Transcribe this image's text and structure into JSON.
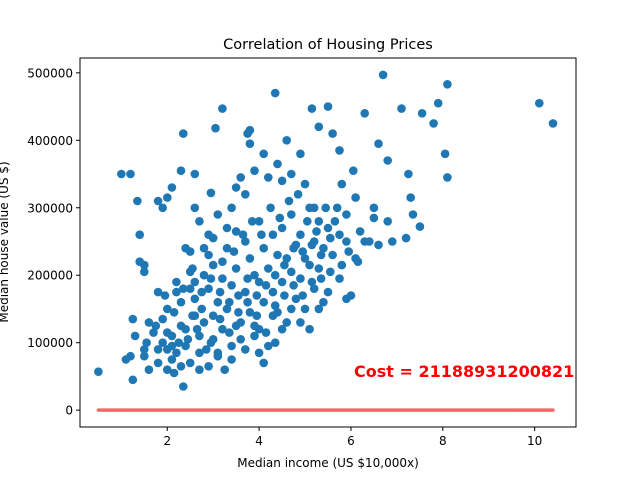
{
  "chart_data": {
    "type": "scatter",
    "title": "Correlation of Housing Prices",
    "xlabel": "Median income (US $10,000x)",
    "ylabel": "Median house value (US $)",
    "xlim": [
      0.1,
      10.9
    ],
    "ylim": [
      -25000,
      522000
    ],
    "xticks": [
      2,
      4,
      6,
      8,
      10
    ],
    "yticks": [
      0,
      100000,
      200000,
      300000,
      400000,
      500000
    ],
    "xtick_labels": [
      "2",
      "4",
      "6",
      "8",
      "10"
    ],
    "ytick_labels": [
      "0",
      "100000",
      "200000",
      "300000",
      "400000",
      "500000"
    ],
    "grid": false,
    "annotation": {
      "text": "Cost = 21188931200821",
      "x": 6.0,
      "y": 57000,
      "color": "#ff0000"
    },
    "fit_line": {
      "x": [
        0.5,
        10.4
      ],
      "y": [
        0,
        0
      ],
      "color": "#ff6666"
    },
    "point_color": "#1f77b4",
    "points": [
      [
        0.5,
        57000
      ],
      [
        1.0,
        350000
      ],
      [
        1.1,
        75000
      ],
      [
        1.2,
        350000
      ],
      [
        1.2,
        80000
      ],
      [
        1.25,
        135000
      ],
      [
        1.35,
        310000
      ],
      [
        1.4,
        260000
      ],
      [
        1.4,
        220000
      ],
      [
        1.5,
        215000
      ],
      [
        1.5,
        205000
      ],
      [
        1.3,
        110000
      ],
      [
        1.5,
        90000
      ],
      [
        1.5,
        80000
      ],
      [
        1.6,
        60000
      ],
      [
        1.8,
        310000
      ],
      [
        1.8,
        70000
      ],
      [
        1.9,
        300000
      ],
      [
        2.0,
        315000
      ],
      [
        2.0,
        90000
      ],
      [
        2.1,
        330000
      ],
      [
        2.3,
        355000
      ],
      [
        2.35,
        410000
      ],
      [
        2.4,
        240000
      ],
      [
        2.5,
        235000
      ],
      [
        2.6,
        300000
      ],
      [
        2.6,
        350000
      ],
      [
        2.7,
        280000
      ],
      [
        2.9,
        260000
      ],
      [
        2.95,
        322000
      ],
      [
        3.0,
        140000
      ],
      [
        3.05,
        418000
      ],
      [
        3.2,
        447000
      ],
      [
        3.1,
        290000
      ],
      [
        3.3,
        270000
      ],
      [
        3.4,
        300000
      ],
      [
        3.5,
        330000
      ],
      [
        3.6,
        345000
      ],
      [
        3.7,
        320000
      ],
      [
        3.75,
        410000
      ],
      [
        3.8,
        415000
      ],
      [
        3.8,
        395000
      ],
      [
        3.9,
        355000
      ],
      [
        4.1,
        380000
      ],
      [
        4.2,
        345000
      ],
      [
        4.35,
        470000
      ],
      [
        4.4,
        365000
      ],
      [
        4.5,
        340000
      ],
      [
        4.6,
        400000
      ],
      [
        4.7,
        350000
      ],
      [
        4.9,
        380000
      ],
      [
        5.0,
        335000
      ],
      [
        5.15,
        447000
      ],
      [
        5.2,
        300000
      ],
      [
        5.3,
        420000
      ],
      [
        5.5,
        450000
      ],
      [
        5.6,
        410000
      ],
      [
        5.75,
        385000
      ],
      [
        5.8,
        335000
      ],
      [
        5.9,
        290000
      ],
      [
        6.05,
        355000
      ],
      [
        6.1,
        315000
      ],
      [
        6.3,
        440000
      ],
      [
        6.5,
        300000
      ],
      [
        6.6,
        395000
      ],
      [
        6.7,
        497000
      ],
      [
        6.8,
        370000
      ],
      [
        6.9,
        250000
      ],
      [
        7.1,
        447000
      ],
      [
        7.25,
        350000
      ],
      [
        7.3,
        315000
      ],
      [
        7.35,
        290000
      ],
      [
        7.5,
        272000
      ],
      [
        7.55,
        440000
      ],
      [
        7.8,
        425000
      ],
      [
        7.9,
        455000
      ],
      [
        8.05,
        380000
      ],
      [
        8.1,
        483000
      ],
      [
        8.1,
        345000
      ],
      [
        10.1,
        455000
      ],
      [
        10.4,
        425000
      ],
      [
        1.25,
        45000
      ],
      [
        1.55,
        100000
      ],
      [
        1.7,
        115000
      ],
      [
        1.8,
        175000
      ],
      [
        1.9,
        135000
      ],
      [
        2.0,
        150000
      ],
      [
        2.1,
        110000
      ],
      [
        2.1,
        95000
      ],
      [
        2.2,
        190000
      ],
      [
        2.2,
        175000
      ],
      [
        2.3,
        160000
      ],
      [
        2.3,
        125000
      ],
      [
        2.35,
        35000
      ],
      [
        2.4,
        95000
      ],
      [
        2.5,
        205000
      ],
      [
        2.5,
        180000
      ],
      [
        2.6,
        165000
      ],
      [
        2.6,
        140000
      ],
      [
        2.7,
        110000
      ],
      [
        2.7,
        60000
      ],
      [
        2.8,
        200000
      ],
      [
        2.8,
        130000
      ],
      [
        2.85,
        90000
      ],
      [
        2.9,
        230000
      ],
      [
        2.9,
        180000
      ],
      [
        3.0,
        215000
      ],
      [
        3.0,
        105000
      ],
      [
        3.1,
        160000
      ],
      [
        3.1,
        80000
      ],
      [
        3.2,
        195000
      ],
      [
        3.2,
        120000
      ],
      [
        3.3,
        240000
      ],
      [
        3.3,
        150000
      ],
      [
        3.4,
        185000
      ],
      [
        3.4,
        95000
      ],
      [
        3.5,
        265000
      ],
      [
        3.5,
        210000
      ],
      [
        3.6,
        130000
      ],
      [
        3.6,
        105000
      ],
      [
        3.7,
        250000
      ],
      [
        3.7,
        175000
      ],
      [
        3.8,
        225000
      ],
      [
        3.8,
        145000
      ],
      [
        3.9,
        200000
      ],
      [
        3.9,
        110000
      ],
      [
        4.0,
        280000
      ],
      [
        4.0,
        190000
      ],
      [
        4.0,
        120000
      ],
      [
        4.1,
        240000
      ],
      [
        4.1,
        160000
      ],
      [
        4.2,
        210000
      ],
      [
        4.2,
        95000
      ],
      [
        4.3,
        260000
      ],
      [
        4.3,
        175000
      ],
      [
        4.35,
        100000
      ],
      [
        4.4,
        230000
      ],
      [
        4.4,
        145000
      ],
      [
        4.5,
        270000
      ],
      [
        4.5,
        190000
      ],
      [
        4.6,
        225000
      ],
      [
        4.6,
        130000
      ],
      [
        4.7,
        290000
      ],
      [
        4.7,
        205000
      ],
      [
        4.8,
        245000
      ],
      [
        4.8,
        165000
      ],
      [
        4.9,
        260000
      ],
      [
        4.9,
        195000
      ],
      [
        5.0,
        225000
      ],
      [
        5.0,
        150000
      ],
      [
        5.1,
        300000
      ],
      [
        5.1,
        215000
      ],
      [
        5.2,
        250000
      ],
      [
        5.2,
        180000
      ],
      [
        5.3,
        280000
      ],
      [
        5.3,
        210000
      ],
      [
        5.4,
        240000
      ],
      [
        5.4,
        160000
      ],
      [
        5.5,
        270000
      ],
      [
        5.6,
        230000
      ],
      [
        5.7,
        300000
      ],
      [
        5.75,
        260000
      ],
      [
        5.8,
        215000
      ],
      [
        5.9,
        250000
      ],
      [
        6.0,
        170000
      ],
      [
        6.1,
        225000
      ],
      [
        6.2,
        265000
      ],
      [
        6.3,
        250000
      ],
      [
        6.5,
        285000
      ],
      [
        6.6,
        245000
      ],
      [
        6.8,
        280000
      ],
      [
        7.2,
        255000
      ],
      [
        2.0,
        60000
      ],
      [
        2.1,
        75000
      ],
      [
        2.2,
        85000
      ],
      [
        2.3,
        65000
      ],
      [
        2.4,
        120000
      ],
      [
        2.5,
        70000
      ],
      [
        2.55,
        140000
      ],
      [
        2.7,
        85000
      ],
      [
        2.9,
        65000
      ],
      [
        3.1,
        85000
      ],
      [
        3.25,
        60000
      ],
      [
        3.4,
        75000
      ],
      [
        3.5,
        125000
      ],
      [
        3.7,
        90000
      ],
      [
        3.9,
        125000
      ],
      [
        4.0,
        85000
      ],
      [
        4.1,
        70000
      ],
      [
        4.3,
        140000
      ],
      [
        4.5,
        120000
      ],
      [
        4.7,
        150000
      ],
      [
        4.9,
        130000
      ],
      [
        5.1,
        120000
      ],
      [
        5.3,
        150000
      ],
      [
        5.5,
        175000
      ],
      [
        5.9,
        165000
      ],
      [
        1.8,
        90000
      ],
      [
        1.9,
        100000
      ],
      [
        2.0,
        115000
      ],
      [
        2.15,
        55000
      ],
      [
        2.25,
        100000
      ],
      [
        2.45,
        105000
      ],
      [
        2.65,
        120000
      ],
      [
        2.75,
        150000
      ],
      [
        2.95,
        100000
      ],
      [
        3.15,
        135000
      ],
      [
        3.35,
        115000
      ],
      [
        3.55,
        145000
      ],
      [
        3.75,
        160000
      ],
      [
        3.95,
        140000
      ],
      [
        4.15,
        115000
      ],
      [
        4.35,
        155000
      ],
      [
        4.55,
        170000
      ],
      [
        4.75,
        185000
      ],
      [
        4.95,
        170000
      ],
      [
        5.15,
        190000
      ],
      [
        5.35,
        195000
      ],
      [
        5.55,
        205000
      ],
      [
        5.75,
        195000
      ],
      [
        5.95,
        235000
      ],
      [
        6.15,
        220000
      ],
      [
        2.6,
        190000
      ],
      [
        2.8,
        240000
      ],
      [
        3.0,
        255000
      ],
      [
        3.2,
        220000
      ],
      [
        3.45,
        235000
      ],
      [
        3.65,
        260000
      ],
      [
        3.85,
        280000
      ],
      [
        4.05,
        260000
      ],
      [
        4.25,
        300000
      ],
      [
        4.45,
        285000
      ],
      [
        4.65,
        310000
      ],
      [
        4.85,
        320000
      ],
      [
        5.05,
        280000
      ],
      [
        5.25,
        265000
      ],
      [
        5.45,
        300000
      ],
      [
        5.65,
        280000
      ],
      [
        1.6,
        130000
      ],
      [
        1.75,
        125000
      ],
      [
        1.95,
        170000
      ],
      [
        2.15,
        145000
      ],
      [
        2.35,
        180000
      ],
      [
        2.55,
        210000
      ],
      [
        2.75,
        175000
      ],
      [
        2.95,
        195000
      ],
      [
        3.15,
        175000
      ],
      [
        3.35,
        160000
      ],
      [
        3.55,
        170000
      ],
      [
        3.75,
        195000
      ],
      [
        3.95,
        170000
      ],
      [
        4.15,
        185000
      ],
      [
        4.35,
        200000
      ],
      [
        4.55,
        215000
      ],
      [
        4.75,
        240000
      ],
      [
        4.95,
        235000
      ],
      [
        5.15,
        245000
      ],
      [
        5.35,
        230000
      ],
      [
        5.55,
        255000
      ],
      [
        6.4,
        250000
      ]
    ]
  }
}
